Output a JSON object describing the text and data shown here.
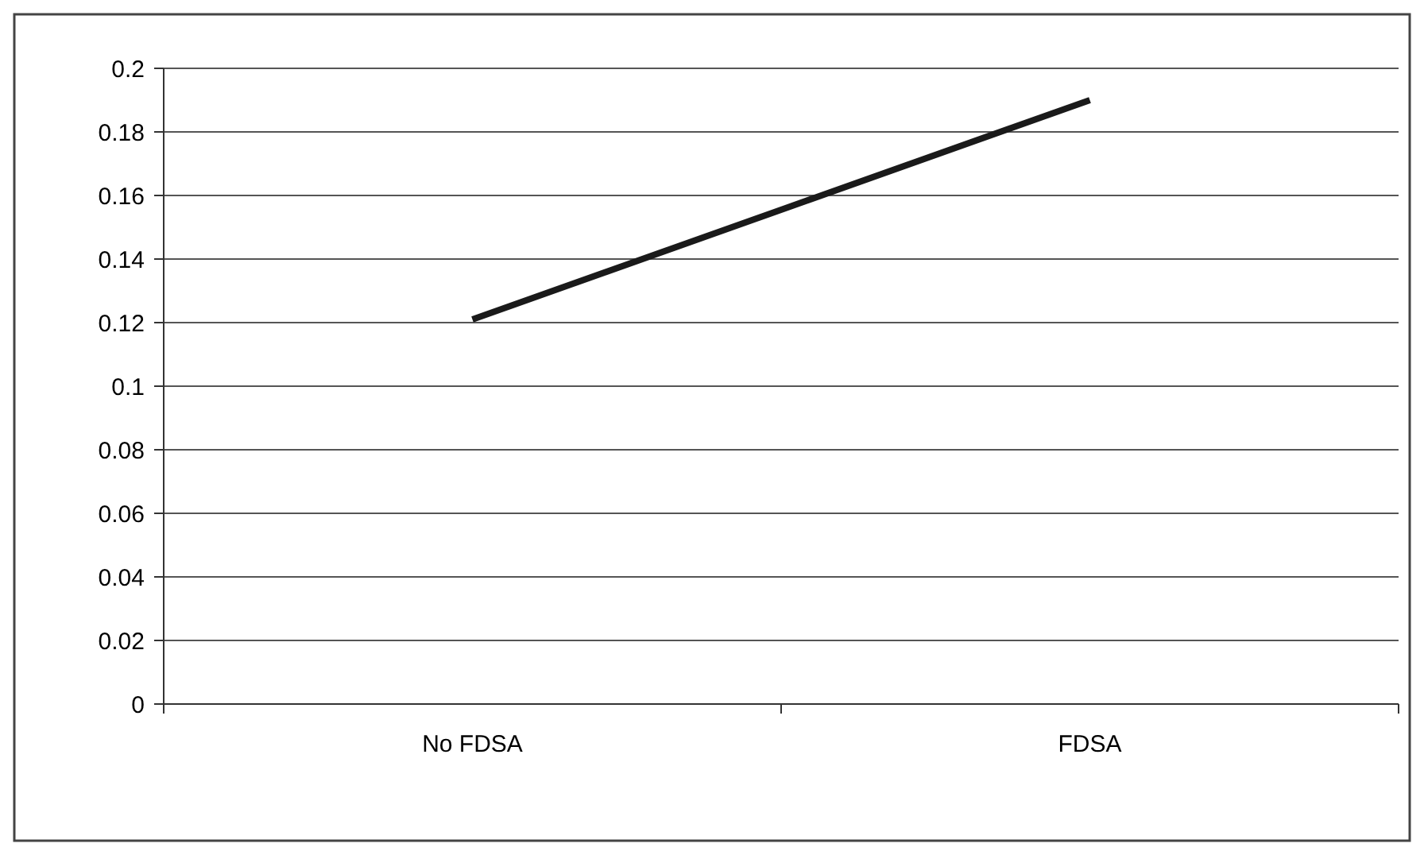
{
  "chart_data": {
    "type": "line",
    "categories": [
      "No FDSA",
      "FDSA"
    ],
    "series": [
      {
        "color": "#1a1a1a",
        "values": [
          0.121,
          0.19
        ]
      }
    ],
    "ylim": [
      0,
      0.2
    ],
    "yticks": [
      0,
      0.02,
      0.04,
      0.06,
      0.08,
      0.1,
      0.12,
      0.14,
      0.16,
      0.18,
      0.2
    ],
    "grid": "y",
    "marker": "none",
    "line_style": "solid"
  }
}
